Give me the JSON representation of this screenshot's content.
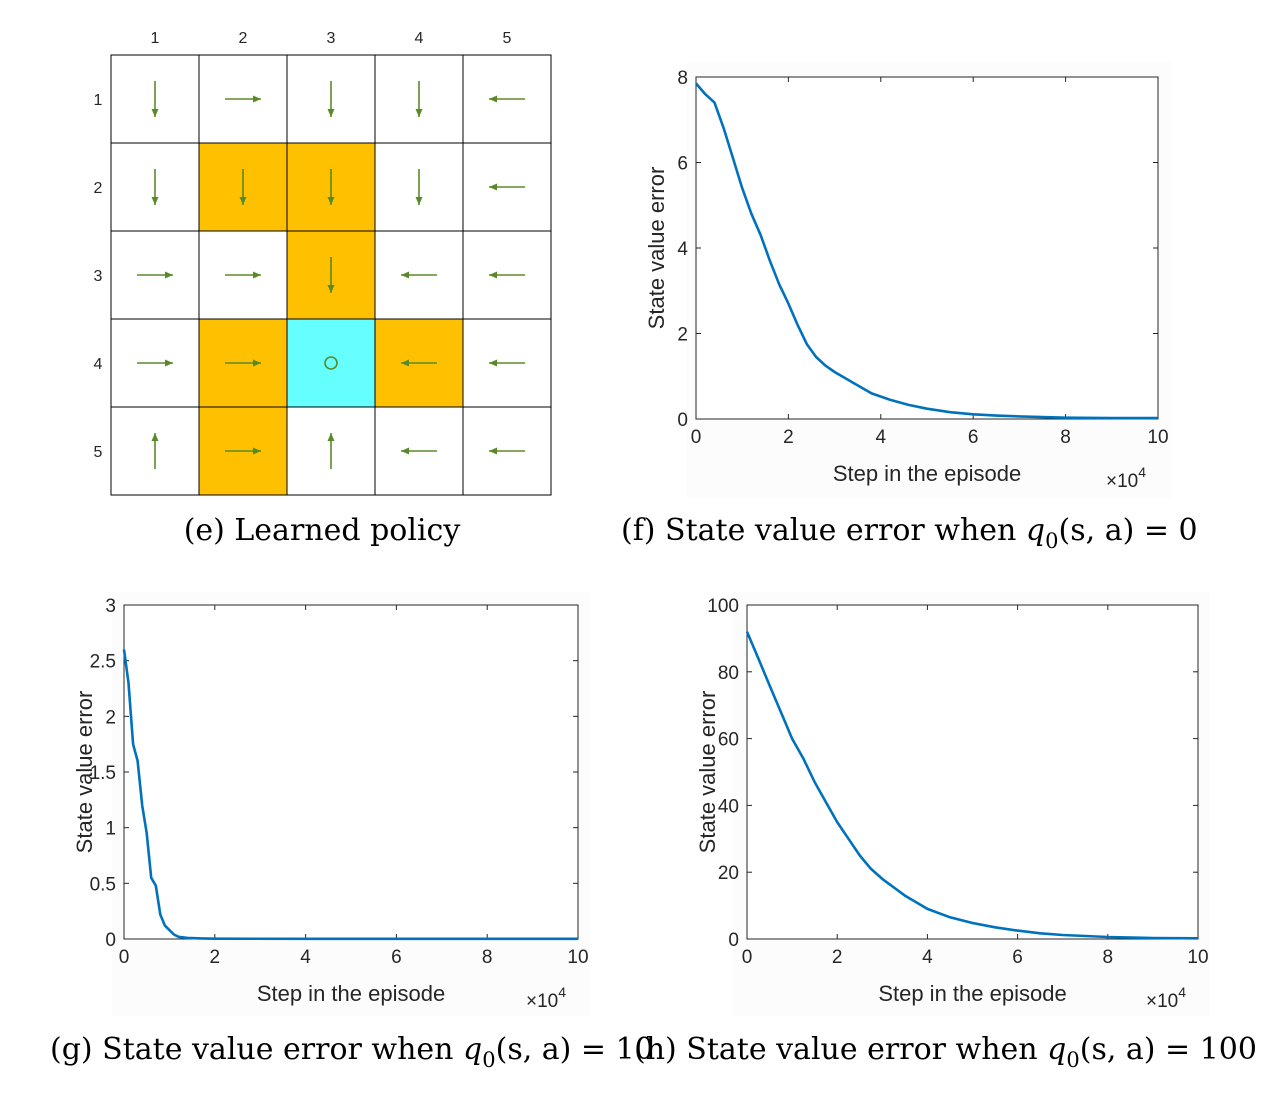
{
  "captions": {
    "e": "(e) Learned policy",
    "f_prefix": "(f) State value error when ",
    "g_prefix": "(g) State value error when ",
    "h_prefix": "(h) State value error when ",
    "q_sym": "q",
    "q_sub": "0",
    "q_args": "(s, a) = ",
    "f_val": "0",
    "g_val": "10",
    "h_val": "100"
  },
  "grid": {
    "col_labels": [
      "1",
      "2",
      "3",
      "4",
      "5"
    ],
    "row_labels": [
      "1",
      "2",
      "3",
      "4",
      "5"
    ],
    "forbidden_color": "#ffc000",
    "target_color": "#66ffff",
    "arrow_color": "#5a8a28",
    "forbidden": [
      [
        2,
        2
      ],
      [
        2,
        3
      ],
      [
        3,
        3
      ],
      [
        4,
        2
      ],
      [
        4,
        4
      ],
      [
        5,
        2
      ]
    ],
    "target": [
      4,
      3
    ],
    "policy": [
      [
        "down",
        "right",
        "down",
        "down",
        "left"
      ],
      [
        "down",
        "down",
        "down",
        "down",
        "left"
      ],
      [
        "right",
        "right",
        "down",
        "left",
        "left"
      ],
      [
        "right",
        "right",
        "stay",
        "left",
        "left"
      ],
      [
        "up",
        "right",
        "up",
        "left",
        "left"
      ]
    ]
  },
  "chart_data": [
    {
      "id": "f",
      "type": "line",
      "xlabel": "Step in the episode",
      "ylabel": "State value error",
      "x_multiplier": "×10",
      "x_multiplier_exp": "4",
      "xlim": [
        0,
        10
      ],
      "ylim": [
        0,
        8
      ],
      "xticks": [
        "0",
        "2",
        "4",
        "6",
        "8",
        "10"
      ],
      "yticks": [
        "0",
        "2",
        "4",
        "6",
        "8"
      ],
      "line_color": "#0072bd",
      "series": [
        {
          "x": [
            0,
            0.2,
            0.4,
            0.6,
            0.8,
            1.0,
            1.2,
            1.4,
            1.6,
            1.8,
            2.0,
            2.2,
            2.4,
            2.6,
            2.8,
            3.0,
            3.4,
            3.8,
            4.2,
            4.6,
            5.0,
            5.5,
            6.0,
            6.5,
            7.0,
            8.0,
            9.0,
            10.0
          ],
          "values": [
            7.85,
            7.6,
            7.4,
            6.8,
            6.1,
            5.4,
            4.8,
            4.3,
            3.7,
            3.15,
            2.7,
            2.2,
            1.75,
            1.45,
            1.25,
            1.1,
            0.85,
            0.6,
            0.45,
            0.33,
            0.24,
            0.16,
            0.11,
            0.08,
            0.06,
            0.03,
            0.02,
            0.02
          ]
        }
      ]
    },
    {
      "id": "g",
      "type": "line",
      "xlabel": "Step in the episode",
      "ylabel": "State value error",
      "x_multiplier": "×10",
      "x_multiplier_exp": "4",
      "xlim": [
        0,
        10
      ],
      "ylim": [
        0,
        3
      ],
      "xticks": [
        "0",
        "2",
        "4",
        "6",
        "8",
        "10"
      ],
      "yticks": [
        "0",
        "0.5",
        "1",
        "1.5",
        "2",
        "2.5",
        "3"
      ],
      "line_color": "#0072bd",
      "series": [
        {
          "x": [
            0,
            0.1,
            0.2,
            0.3,
            0.4,
            0.5,
            0.6,
            0.7,
            0.8,
            0.9,
            1.0,
            1.1,
            1.2,
            1.4,
            1.7,
            2.0,
            4,
            6,
            8,
            10
          ],
          "values": [
            2.6,
            2.3,
            1.75,
            1.6,
            1.2,
            0.95,
            0.55,
            0.48,
            0.22,
            0.12,
            0.08,
            0.04,
            0.02,
            0.01,
            0.005,
            0.003,
            0.002,
            0.002,
            0.002,
            0.002
          ]
        }
      ]
    },
    {
      "id": "h",
      "type": "line",
      "xlabel": "Step in the episode",
      "ylabel": "State value error",
      "x_multiplier": "×10",
      "x_multiplier_exp": "4",
      "xlim": [
        0,
        10
      ],
      "ylim": [
        0,
        100
      ],
      "xticks": [
        "0",
        "2",
        "4",
        "6",
        "8",
        "10"
      ],
      "yticks": [
        "0",
        "20",
        "40",
        "60",
        "80",
        "100"
      ],
      "line_color": "#0072bd",
      "series": [
        {
          "x": [
            0,
            0.25,
            0.5,
            0.75,
            1.0,
            1.25,
            1.5,
            1.75,
            2.0,
            2.25,
            2.5,
            2.75,
            3.0,
            3.5,
            4.0,
            4.5,
            5.0,
            5.5,
            6.0,
            6.5,
            7.0,
            8.0,
            9.0,
            10.0
          ],
          "values": [
            92,
            84,
            76,
            68,
            60,
            54,
            47,
            41,
            35,
            30,
            25,
            21,
            18,
            13,
            9,
            6.5,
            4.8,
            3.5,
            2.5,
            1.7,
            1.2,
            0.6,
            0.3,
            0.2
          ]
        }
      ]
    }
  ]
}
